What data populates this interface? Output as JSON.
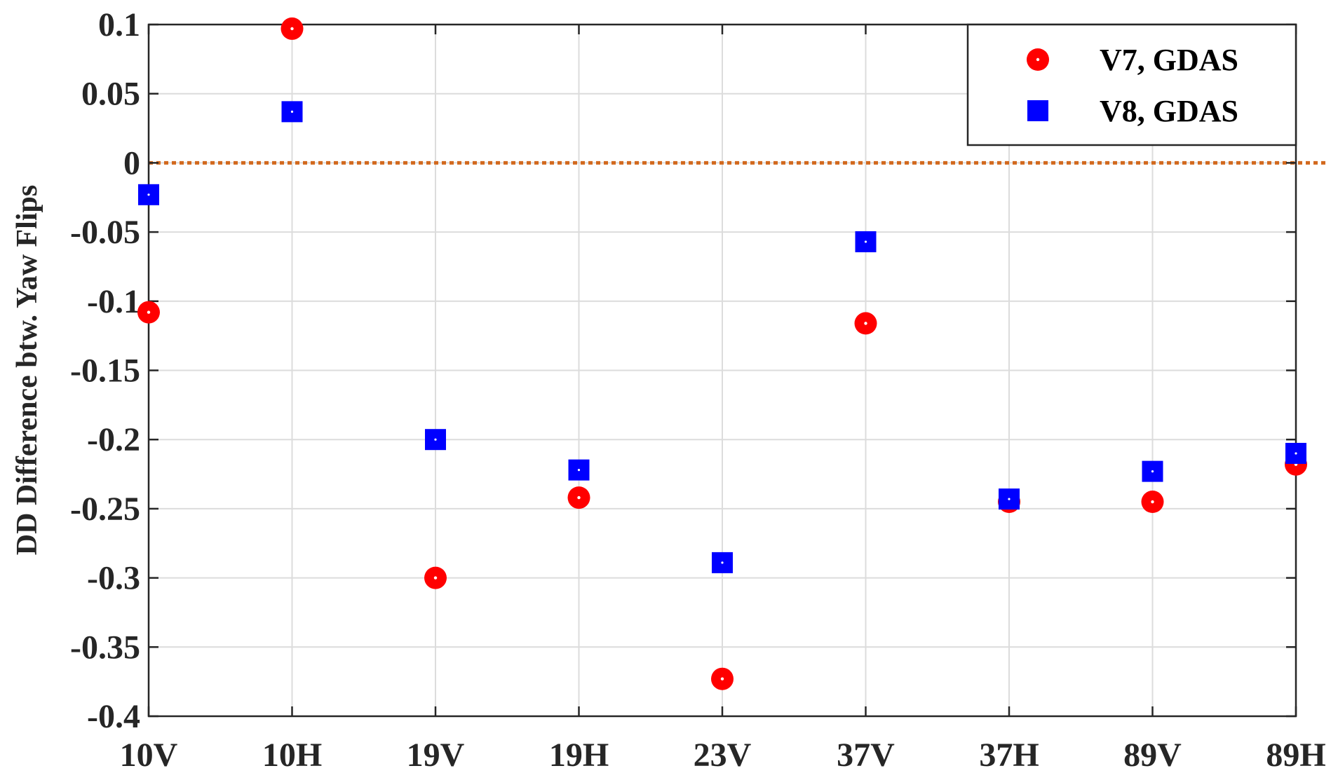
{
  "chart_data": {
    "type": "scatter",
    "categories": [
      "10V",
      "10H",
      "19V",
      "19H",
      "23V",
      "37V",
      "37H",
      "89V",
      "89H"
    ],
    "ylabel": "DD Difference btw. Yaw Flips",
    "ylim": [
      -0.4,
      0.1
    ],
    "yticks": [
      "0.1",
      "0.05",
      "0",
      "-0.05",
      "-0.1",
      "-0.15",
      "-0.2",
      "-0.25",
      "-0.3",
      "-0.35",
      "-0.4"
    ],
    "grid": true,
    "reference_line": {
      "y": 0,
      "style": "dotted",
      "color": "#d2691e"
    },
    "legend_position": "top-right",
    "series": [
      {
        "name": "V7, GDAS",
        "marker": "circle",
        "color": "#ff0000",
        "values": [
          -0.108,
          0.097,
          -0.3,
          -0.242,
          -0.373,
          -0.116,
          -0.245,
          -0.245,
          -0.218
        ]
      },
      {
        "name": "V8, GDAS",
        "marker": "square",
        "color": "#0000ff",
        "values": [
          -0.023,
          0.037,
          -0.2,
          -0.222,
          -0.289,
          -0.057,
          -0.243,
          -0.223,
          -0.21
        ]
      }
    ]
  }
}
